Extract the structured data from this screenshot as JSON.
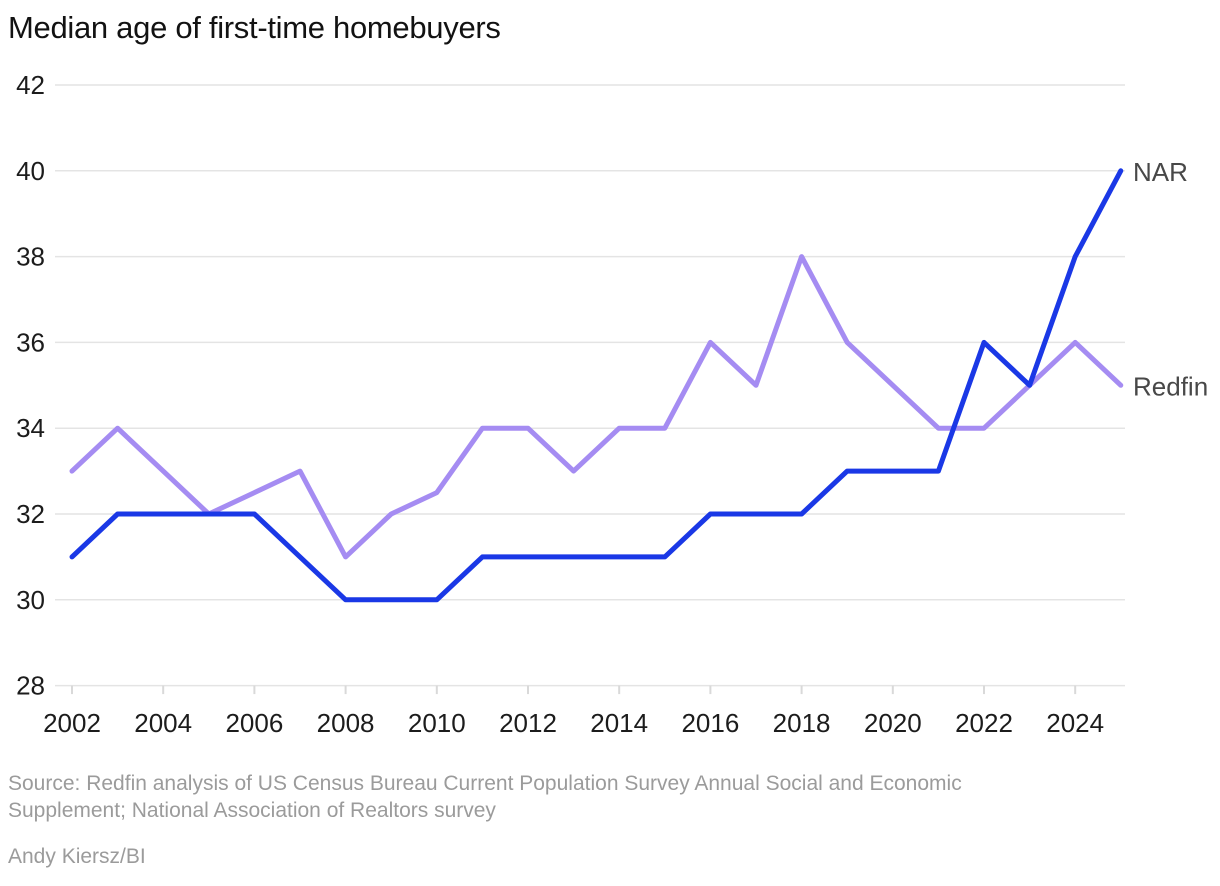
{
  "title": "Median age of first-time homebuyers",
  "source_line1": "Source: Redfin analysis of US Census Bureau Current Population Survey Annual Social and Economic",
  "source_line2": "Supplement; National Association of Realtors survey",
  "credit": "Andy Kiersz/BI",
  "colors": {
    "nar": "#1a38e6",
    "redfin": "#a58cf2",
    "grid": "#e4e4e4",
    "tick": "#d9d9d9",
    "axis_text": "#1c1c1c",
    "legend_text": "#484848",
    "source_text": "#9b9b9b"
  },
  "chart_data": {
    "type": "line",
    "title": "Median age of first-time homebuyers",
    "x": [
      2002,
      2003,
      2004,
      2005,
      2006,
      2007,
      2008,
      2009,
      2010,
      2011,
      2012,
      2013,
      2014,
      2015,
      2016,
      2017,
      2018,
      2019,
      2020,
      2021,
      2022,
      2023,
      2024,
      2025
    ],
    "series": [
      {
        "name": "NAR",
        "color_key": "nar",
        "values": [
          31,
          32,
          32,
          32,
          32,
          31,
          30,
          30,
          30,
          31,
          31,
          31,
          31,
          31,
          32,
          32,
          32,
          33,
          33,
          33,
          36,
          35,
          38,
          40
        ]
      },
      {
        "name": "Redfin",
        "color_key": "redfin",
        "values": [
          33,
          34,
          33,
          32,
          32.5,
          33,
          31,
          32,
          32.5,
          34,
          34,
          33,
          34,
          34,
          36,
          35,
          38,
          36,
          35,
          34,
          34,
          35,
          36,
          35
        ]
      }
    ],
    "xticks": [
      2002,
      2004,
      2006,
      2008,
      2010,
      2012,
      2014,
      2016,
      2018,
      2020,
      2022,
      2024
    ],
    "yticks": [
      42,
      40,
      38,
      36,
      34,
      32,
      30,
      28
    ],
    "xlim": [
      2002,
      2025
    ],
    "ylim": [
      28,
      42
    ],
    "grid": "horizontal",
    "legend_position": "right-of-line-ends"
  }
}
